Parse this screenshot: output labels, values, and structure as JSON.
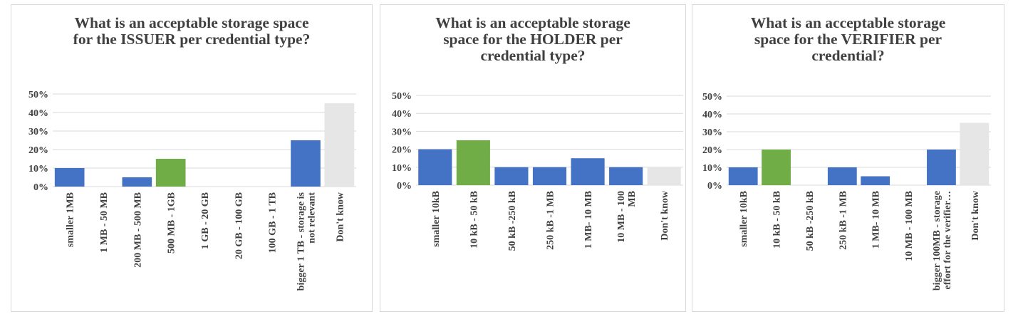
{
  "colors": {
    "blue": "#4472c4",
    "green": "#70ad47",
    "gray": "#e7e6e6",
    "grid": "#d9d9d9",
    "text": "#404040"
  },
  "chart_data": [
    {
      "type": "bar",
      "title": "What is an acceptable storage space\nfor the ISSUER per credential type?",
      "categories": [
        "smaller 1MB",
        "1 MB - 50 MB",
        "200 MB - 500 MB",
        "500 MB - 1GB",
        "1 GB - 20 GB",
        "20 GB - 100 GB",
        "100 GB - 1 TB",
        "bigger 1 TB - storage is\nnot relevant",
        "Don't know"
      ],
      "values": [
        10,
        0,
        5,
        15,
        0,
        0,
        0,
        25,
        45
      ],
      "bar_colors": [
        "blue",
        "blue",
        "blue",
        "green",
        "blue",
        "blue",
        "blue",
        "blue",
        "gray"
      ],
      "yticks": [
        "0%",
        "10%",
        "20%",
        "30%",
        "40%",
        "50%"
      ],
      "ylim": [
        0,
        50
      ],
      "grid": true,
      "value_unit": "%"
    },
    {
      "type": "bar",
      "title": "What is an acceptable storage\nspace for the HOLDER per\ncredential type?",
      "categories": [
        "smaller 10kB",
        "10 kB - 50 kB",
        "50 kB -250 kB",
        "250 kB -1 MB",
        "1 MB- 10 MB",
        "10 MB - 100\nMB",
        "Don't know"
      ],
      "values": [
        20,
        25,
        10,
        10,
        15,
        10,
        10
      ],
      "bar_colors": [
        "blue",
        "green",
        "blue",
        "blue",
        "blue",
        "blue",
        "gray"
      ],
      "yticks": [
        "0%",
        "10%",
        "20%",
        "30%",
        "40%",
        "50%"
      ],
      "ylim": [
        0,
        50
      ],
      "grid": true,
      "value_unit": "%"
    },
    {
      "type": "bar",
      "title": "What is an acceptable storage\nspace for the VERIFIER  per\ncredential?",
      "categories": [
        "smaller 10kB",
        "10 kB - 50 kB",
        "50 kB -250 kB",
        "250 kB -1 MB",
        "1 MB- 10 MB",
        "10 MB - 100 MB",
        "bigger 100MB - storage\neffort for the verifier…",
        "Don't know"
      ],
      "values": [
        10,
        20,
        0,
        10,
        5,
        0,
        20,
        35
      ],
      "bar_colors": [
        "blue",
        "green",
        "blue",
        "blue",
        "blue",
        "blue",
        "blue",
        "gray"
      ],
      "yticks": [
        "0%",
        "10%",
        "20%",
        "30%",
        "40%",
        "50%"
      ],
      "ylim": [
        0,
        50
      ],
      "grid": true,
      "value_unit": "%"
    }
  ]
}
